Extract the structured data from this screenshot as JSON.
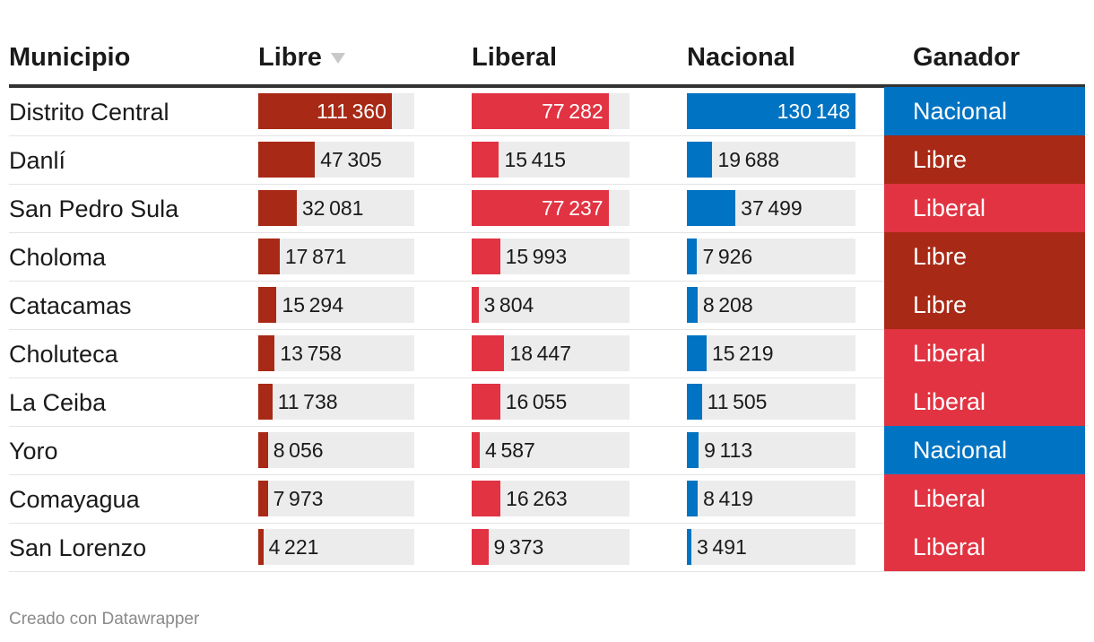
{
  "chart_data": {
    "type": "table",
    "columns": [
      "Municipio",
      "Libre",
      "Liberal",
      "Nacional",
      "Ganador"
    ],
    "sorted_column": "Libre",
    "sort_direction": "descending",
    "colors": {
      "Libre": "#a82915",
      "Liberal": "#e13342",
      "Nacional": "#0073c2",
      "cell_background": "#ececec"
    },
    "rows": [
      {
        "municipio": "Distrito Central",
        "libre": 111360,
        "liberal": 77282,
        "nacional": 130148,
        "ganador": "Nacional"
      },
      {
        "municipio": "Danlí",
        "libre": 47305,
        "liberal": 15415,
        "nacional": 19688,
        "ganador": "Libre"
      },
      {
        "municipio": "San Pedro Sula",
        "libre": 32081,
        "liberal": 77237,
        "nacional": 37499,
        "ganador": "Liberal"
      },
      {
        "municipio": "Choloma",
        "libre": 17871,
        "liberal": 15993,
        "nacional": 7926,
        "ganador": "Libre"
      },
      {
        "municipio": "Catacamas",
        "libre": 15294,
        "liberal": 3804,
        "nacional": 8208,
        "ganador": "Libre"
      },
      {
        "municipio": "Choluteca",
        "libre": 13758,
        "liberal": 18447,
        "nacional": 15219,
        "ganador": "Liberal"
      },
      {
        "municipio": "La Ceiba",
        "libre": 11738,
        "liberal": 16055,
        "nacional": 11505,
        "ganador": "Liberal"
      },
      {
        "municipio": "Yoro",
        "libre": 8056,
        "liberal": 4587,
        "nacional": 9113,
        "ganador": "Nacional"
      },
      {
        "municipio": "Comayagua",
        "libre": 7973,
        "liberal": 16263,
        "nacional": 8419,
        "ganador": "Liberal"
      },
      {
        "municipio": "San Lorenzo",
        "libre": 4221,
        "liberal": 9373,
        "nacional": 3491,
        "ganador": "Liberal"
      }
    ]
  },
  "footer": {
    "credit": "Creado con Datawrapper"
  }
}
